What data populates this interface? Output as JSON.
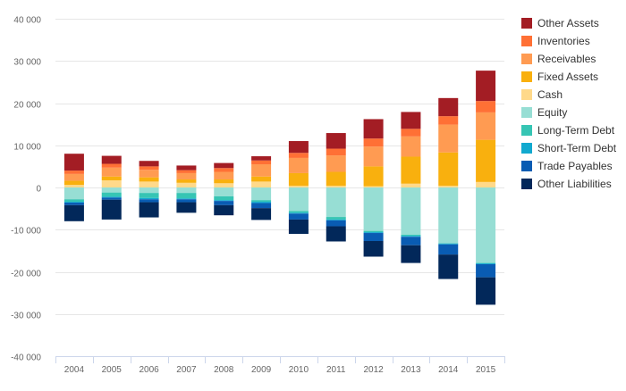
{
  "chart_data": {
    "type": "bar",
    "stacked": true,
    "categories": [
      "2004",
      "2005",
      "2006",
      "2007",
      "2008",
      "2009",
      "2010",
      "2011",
      "2012",
      "2013",
      "2014",
      "2015"
    ],
    "ylim": [
      -40000,
      40000
    ],
    "yticks": [
      40000,
      30000,
      20000,
      10000,
      0,
      -10000,
      -20000,
      -30000,
      -40000
    ],
    "ytick_labels": [
      "40 000",
      "30 000",
      "20 000",
      "10 000",
      "0",
      "-10 000",
      "-20 000",
      "-30 000",
      "-40 000"
    ],
    "grid": true,
    "legend_position": "right",
    "assets": [
      {
        "name": "Cash",
        "color": "#ffd98a",
        "values": [
          600,
          1700,
          1400,
          1100,
          1000,
          1400,
          400,
          400,
          300,
          900,
          400,
          1300
        ]
      },
      {
        "name": "Fixed Assets",
        "color": "#f9b00e",
        "values": [
          1000,
          900,
          1000,
          800,
          900,
          1200,
          3000,
          3300,
          4700,
          6400,
          7900,
          10000
        ]
      },
      {
        "name": "Receivables",
        "color": "#ff9b52",
        "values": [
          1600,
          2100,
          1800,
          1500,
          1800,
          2900,
          3600,
          3900,
          4700,
          4800,
          6600,
          6500
        ]
      },
      {
        "name": "Inventories",
        "color": "#ff7035",
        "values": [
          800,
          900,
          800,
          700,
          900,
          900,
          1200,
          1600,
          1900,
          1800,
          2000,
          2700
        ]
      },
      {
        "name": "Other Assets",
        "color": "#a31d24",
        "values": [
          4000,
          1900,
          1300,
          1100,
          1200,
          1000,
          2800,
          3700,
          4600,
          4000,
          4300,
          7200
        ]
      }
    ],
    "liabilities": [
      {
        "name": "Equity",
        "color": "#97ded4",
        "values": [
          -2800,
          -1200,
          -1300,
          -1300,
          -2100,
          -3000,
          -5600,
          -7000,
          -10300,
          -11200,
          -13200,
          -17900
        ]
      },
      {
        "name": "Long-Term Debt",
        "color": "#36c5b4",
        "values": [
          -600,
          -1000,
          -1200,
          -1300,
          -900,
          -400,
          -400,
          -600,
          -300,
          -300,
          -100,
          -100
        ]
      },
      {
        "name": "Short-Term Debt",
        "color": "#11a9cf",
        "values": [
          -200,
          -200,
          -300,
          -200,
          -200,
          -300,
          -200,
          -200,
          -200,
          -200,
          -200,
          -200
        ]
      },
      {
        "name": "Trade Payables",
        "color": "#095cb3",
        "values": [
          -600,
          -500,
          -700,
          -700,
          -1000,
          -1200,
          -1400,
          -1400,
          -1900,
          -2000,
          -2400,
          -3100
        ]
      },
      {
        "name": "Other Liabilities",
        "color": "#02285a",
        "values": [
          -3800,
          -4700,
          -3600,
          -2500,
          -2400,
          -2800,
          -3400,
          -3600,
          -3700,
          -4200,
          -5800,
          -6500
        ]
      }
    ],
    "legend": [
      {
        "name": "Other Assets",
        "color": "#a31d24"
      },
      {
        "name": "Inventories",
        "color": "#ff7035"
      },
      {
        "name": "Receivables",
        "color": "#ff9b52"
      },
      {
        "name": "Fixed Assets",
        "color": "#f9b00e"
      },
      {
        "name": "Cash",
        "color": "#ffd98a"
      },
      {
        "name": "Equity",
        "color": "#97ded4"
      },
      {
        "name": "Long-Term Debt",
        "color": "#36c5b4"
      },
      {
        "name": "Short-Term Debt",
        "color": "#11a9cf"
      },
      {
        "name": "Trade Payables",
        "color": "#095cb3"
      },
      {
        "name": "Other Liabilities",
        "color": "#02285a"
      }
    ]
  }
}
